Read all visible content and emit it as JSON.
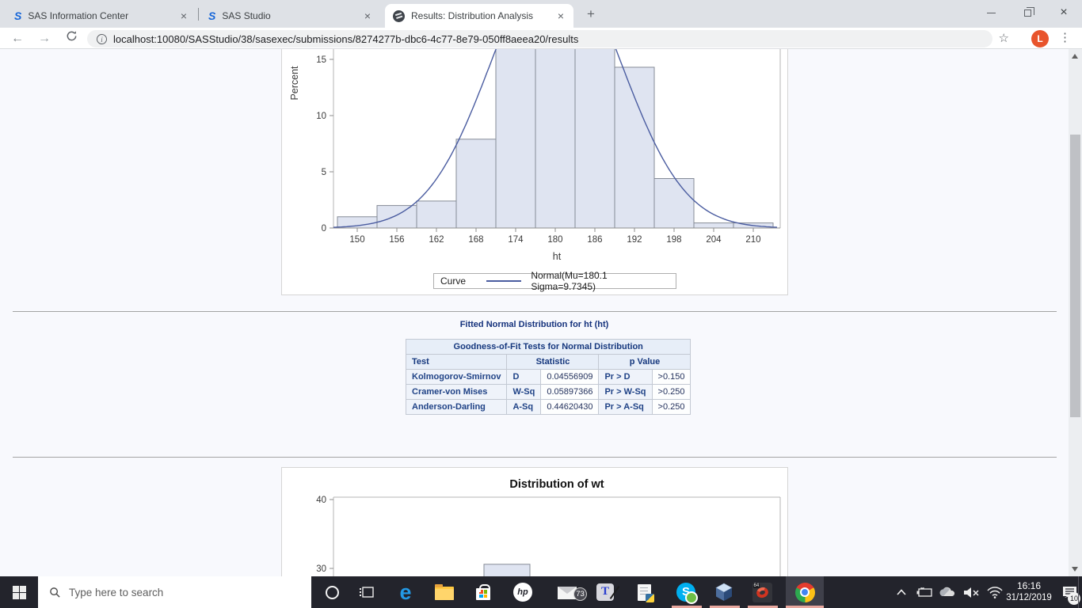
{
  "browser": {
    "tabs": [
      {
        "title": "SAS Information Center",
        "favicon": "sas-logo",
        "active": false
      },
      {
        "title": "SAS Studio",
        "favicon": "sas-logo",
        "active": false
      },
      {
        "title": "Results: Distribution Analysis",
        "favicon": "dark-globe",
        "active": true
      }
    ],
    "new_tab_label": "+",
    "url": "localhost:10080/SASStudio/38/sasexec/submissions/8274277b-dbc6-4c77-8e79-050ff8aeea20/results",
    "profile_initial": "L",
    "profile_color": "#e8542c"
  },
  "page": {
    "section_title": "Fitted Normal Distribution for ht (ht)",
    "table": {
      "title": "Goodness-of-Fit Tests for Normal Distribution",
      "columns": [
        "Test",
        "Statistic",
        "p Value"
      ],
      "rows": [
        {
          "test": "Kolmogorov-Smirnov",
          "stat_name": "D",
          "stat_value": "0.04556909",
          "p_label": "Pr > D",
          "p_value": ">0.150"
        },
        {
          "test": "Cramer-von Mises",
          "stat_name": "W-Sq",
          "stat_value": "0.05897366",
          "p_label": "Pr > W-Sq",
          "p_value": ">0.250"
        },
        {
          "test": "Anderson-Darling",
          "stat_name": "A-Sq",
          "stat_value": "0.44620430",
          "p_label": "Pr > A-Sq",
          "p_value": ">0.250"
        }
      ]
    }
  },
  "chart_data": [
    {
      "type": "bar",
      "name": "histogram-ht",
      "xlabel": "ht",
      "ylabel": "Percent",
      "categories": [
        150,
        156,
        162,
        168,
        174,
        180,
        186,
        192,
        198,
        204,
        210
      ],
      "values": [
        1.0,
        2.0,
        2.4,
        7.9,
        17,
        17,
        17,
        14.3,
        4.4,
        0.45,
        0.45
      ],
      "bin_width": 6,
      "y_ticks": [
        0,
        5,
        10,
        15
      ],
      "note": "Top of chart scrolled out of view; bars at 174, 180 and 186 extend above the visible area (true heights not shown, > ~15.9%)",
      "curve": {
        "legend_prefix": "Curve",
        "label": "Normal(Mu=180.1 Sigma=9.7345)",
        "mu": 180.1,
        "sigma": 9.7345,
        "color": "#4a5ca0"
      },
      "bar_fill": "#dfe4f1",
      "bar_stroke": "#858b96",
      "grid": false,
      "legend_position": "bottom-center"
    },
    {
      "type": "bar",
      "name": "histogram-wt",
      "title": "Distribution of wt",
      "y_ticks": [
        30,
        40
      ],
      "bars": [
        {
          "value": 30.6
        }
      ],
      "note": "Chart only partially visible; lower portion hidden behind the taskbar",
      "bar_fill": "#dfe4f1",
      "bar_stroke": "#858b96"
    }
  ],
  "taskbar": {
    "search_placeholder": "Type here to search",
    "pinned_icons": [
      "cortana",
      "task-view",
      "edge",
      "file-explorer",
      "microsoft-store",
      "hp",
      "mail",
      "tex-editor",
      "python-file",
      "skype",
      "virtualbox",
      "red-64-app",
      "chrome"
    ],
    "mail_badge": "73",
    "running_apps": [
      "skype",
      "virtualbox",
      "red-64-app",
      "chrome"
    ],
    "active_app": "chrome",
    "tray_icons": [
      "hidden-icons-chevron",
      "battery",
      "onedrive-cloud",
      "volume-muted",
      "wifi"
    ],
    "time": "16:16",
    "date": "31/12/2019",
    "notification_badge": "10"
  }
}
